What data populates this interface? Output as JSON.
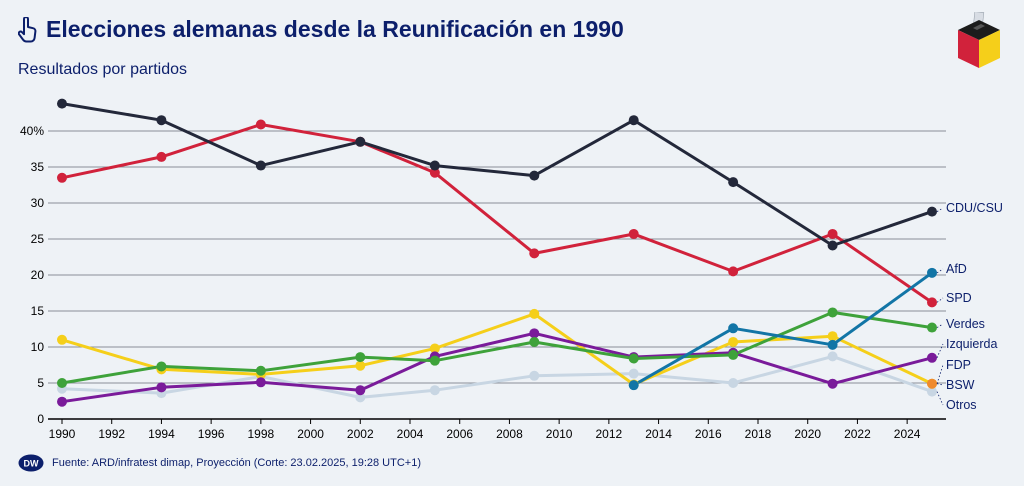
{
  "header": {
    "title": "Elecciones alemanas desde la Reunificación en 1990",
    "subtitle": "Resultados por partidos"
  },
  "footer": {
    "source": "Fuente: ARD/infratest dimap, Proyección (Corte: 23.02.2025, 19:28 UTC+1)",
    "logo_text": "DW"
  },
  "icons": {
    "title_icon": "pointing-hand-icon",
    "corner_logo": "ballot-box-icon"
  },
  "chart_data": {
    "type": "line",
    "x_ticks": [
      1990,
      1992,
      1994,
      1996,
      1998,
      2000,
      2002,
      2004,
      2006,
      2008,
      2010,
      2012,
      2014,
      2016,
      2018,
      2020,
      2022,
      2024
    ],
    "y_ticks": [
      "0",
      "5",
      "10",
      "15",
      "20",
      "25",
      "30",
      "35",
      "40%"
    ],
    "ylim": [
      0,
      45
    ],
    "xlim": [
      1990,
      2025
    ],
    "grid": true,
    "legend_placement": "right end labels",
    "series": [
      {
        "name": "CDU/CSU",
        "color": "#23283a",
        "x": [
          1990,
          1994,
          1998,
          2002,
          2005,
          2009,
          2013,
          2017,
          2021,
          2025
        ],
        "values": [
          43.8,
          41.5,
          35.2,
          38.5,
          35.2,
          33.8,
          41.5,
          32.9,
          24.1,
          28.8
        ]
      },
      {
        "name": "AfD",
        "color": "#1275a6",
        "x": [
          2013,
          2017,
          2021,
          2025
        ],
        "values": [
          4.7,
          12.6,
          10.3,
          20.3
        ]
      },
      {
        "name": "SPD",
        "color": "#d1223b",
        "x": [
          1990,
          1994,
          1998,
          2002,
          2005,
          2009,
          2013,
          2017,
          2021,
          2025
        ],
        "values": [
          33.5,
          36.4,
          40.9,
          38.5,
          34.2,
          23.0,
          25.7,
          20.5,
          25.7,
          16.2
        ]
      },
      {
        "name": "Verdes",
        "color": "#3ea23a",
        "x": [
          1990,
          1994,
          1998,
          2002,
          2005,
          2009,
          2013,
          2017,
          2021,
          2025
        ],
        "values": [
          5.0,
          7.3,
          6.7,
          8.6,
          8.1,
          10.7,
          8.4,
          8.9,
          14.8,
          12.7
        ]
      },
      {
        "name": "Izquierda",
        "color": "#7a1b9a",
        "x": [
          1990,
          1994,
          1998,
          2002,
          2005,
          2009,
          2013,
          2017,
          2021,
          2025
        ],
        "values": [
          2.4,
          4.4,
          5.1,
          4.0,
          8.7,
          11.9,
          8.6,
          9.2,
          4.9,
          8.5
        ]
      },
      {
        "name": "FDP",
        "color": "#f5cf1a",
        "x": [
          1990,
          1994,
          1998,
          2002,
          2005,
          2009,
          2013,
          2017,
          2021,
          2025
        ],
        "values": [
          11.0,
          6.9,
          6.2,
          7.4,
          9.8,
          14.6,
          4.8,
          10.7,
          11.5,
          4.9
        ]
      },
      {
        "name": "BSW",
        "color": "#ef8a2d",
        "x": [
          2025
        ],
        "values": [
          4.9
        ]
      },
      {
        "name": "Otros",
        "color": "#c8d6e3",
        "x": [
          1990,
          1994,
          1998,
          2002,
          2005,
          2009,
          2013,
          2017,
          2021,
          2025
        ],
        "values": [
          4.2,
          3.6,
          5.9,
          3.0,
          4.0,
          6.0,
          6.3,
          5.0,
          8.7,
          3.8
        ]
      }
    ]
  }
}
